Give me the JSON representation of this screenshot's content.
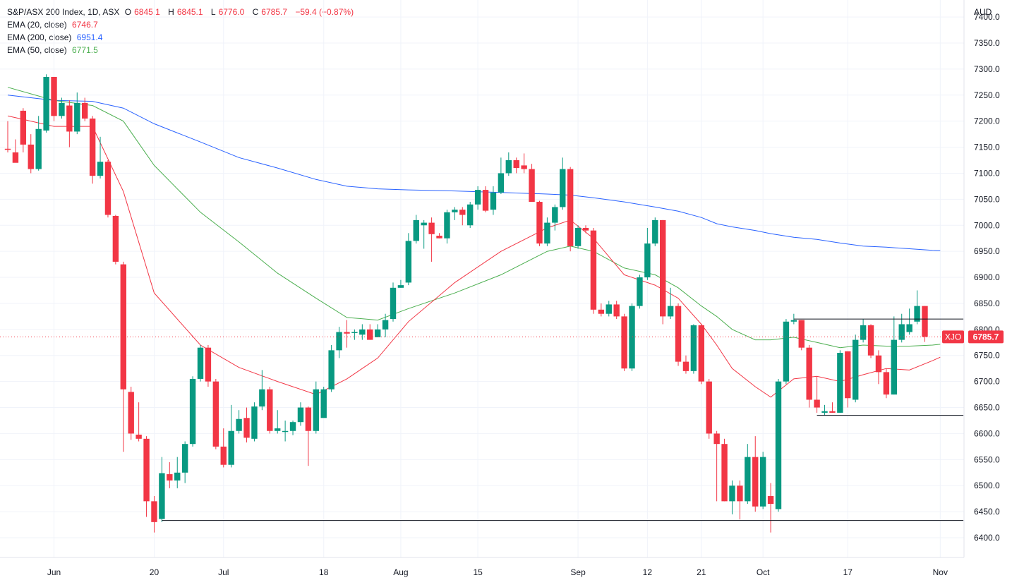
{
  "header": {
    "symbol": "S&P/ASX 200 Index, 1D, ASX",
    "o_label": "O",
    "o": "6845.1",
    "h_label": "H",
    "h": "6845.1",
    "l_label": "L",
    "l": "6776.0",
    "c_label": "C",
    "c": "6785.7",
    "change": "−59.4 (−0.87%)"
  },
  "indicators": [
    {
      "label": "EMA (20, close)",
      "value": "6746.7",
      "color": "#f23645"
    },
    {
      "label": "EMA (200, close)",
      "value": "6951.4",
      "color": "#2962ff"
    },
    {
      "label": "EMA (50, close)",
      "value": "6771.5",
      "color": "#4caf50"
    }
  ],
  "colors": {
    "up": "#089981",
    "down": "#f23645",
    "ema20": "#f23645",
    "ema50": "#4caf50",
    "ema200": "#2962ff",
    "grid": "#f0f3fa"
  },
  "price_axis": {
    "currency": "AUD",
    "ticks": [
      "6400.0",
      "6450.0",
      "6500.0",
      "6550.0",
      "6600.0",
      "6650.0",
      "6700.0",
      "6750.0",
      "6800.0",
      "6850.0",
      "6900.0",
      "6950.0",
      "7000.0",
      "7050.0",
      "7100.0",
      "7150.0",
      "7200.0",
      "7250.0",
      "7300.0",
      "7350.0",
      "7400.0"
    ]
  },
  "time_axis": {
    "labels": [
      {
        "text": "Jun",
        "bar": 6
      },
      {
        "text": "20",
        "bar": 19
      },
      {
        "text": "Jul",
        "bar": 28
      },
      {
        "text": "18",
        "bar": 41
      },
      {
        "text": "Aug",
        "bar": 51
      },
      {
        "text": "15",
        "bar": 61
      },
      {
        "text": "Sep",
        "bar": 74
      },
      {
        "text": "12",
        "bar": 83
      },
      {
        "text": "21",
        "bar": 90
      },
      {
        "text": "Oct",
        "bar": 98
      },
      {
        "text": "17",
        "bar": 109
      },
      {
        "text": "Nov",
        "bar": 121
      }
    ]
  },
  "price_tag": {
    "symbol": "XJO",
    "value": "6785.7"
  },
  "chart_data": {
    "type": "candlestick",
    "title": "S&P/ASX 200 Index, 1D, ASX",
    "y_unit": "AUD",
    "ylim": [
      6380,
      7420
    ],
    "grid": true,
    "candles": [
      {
        "o": 7147,
        "h": 7200,
        "l": 7140,
        "c": 7145
      },
      {
        "o": 7140,
        "h": 7165,
        "l": 7130,
        "c": 7120
      },
      {
        "o": 7220,
        "h": 7225,
        "l": 7140,
        "c": 7155
      },
      {
        "o": 7155,
        "h": 7175,
        "l": 7100,
        "c": 7108
      },
      {
        "o": 7108,
        "h": 7210,
        "l": 7105,
        "c": 7185
      },
      {
        "o": 7182,
        "h": 7290,
        "l": 7178,
        "c": 7285
      },
      {
        "o": 7285,
        "h": 7285,
        "l": 7200,
        "c": 7210
      },
      {
        "o": 7210,
        "h": 7245,
        "l": 7205,
        "c": 7235
      },
      {
        "o": 7230,
        "h": 7240,
        "l": 7150,
        "c": 7180
      },
      {
        "o": 7180,
        "h": 7255,
        "l": 7175,
        "c": 7235
      },
      {
        "o": 7235,
        "h": 7245,
        "l": 7200,
        "c": 7205
      },
      {
        "o": 7205,
        "h": 7210,
        "l": 7080,
        "c": 7095
      },
      {
        "o": 7095,
        "h": 7170,
        "l": 7090,
        "c": 7122
      },
      {
        "o": 7122,
        "h": 7125,
        "l": 7015,
        "c": 7020
      },
      {
        "o": 7018,
        "h": 7020,
        "l": 6925,
        "c": 6930
      },
      {
        "o": 6925,
        "h": 6930,
        "l": 6565,
        "c": 6685
      },
      {
        "o": 6680,
        "h": 6690,
        "l": 6588,
        "c": 6600
      },
      {
        "o": 6598,
        "h": 6660,
        "l": 6585,
        "c": 6590
      },
      {
        "o": 6590,
        "h": 6595,
        "l": 6440,
        "c": 6470
      },
      {
        "o": 6470,
        "h": 6480,
        "l": 6410,
        "c": 6430
      },
      {
        "o": 6436,
        "h": 6555,
        "l": 6430,
        "c": 6524
      },
      {
        "o": 6522,
        "h": 6545,
        "l": 6495,
        "c": 6510
      },
      {
        "o": 6510,
        "h": 6555,
        "l": 6495,
        "c": 6525
      },
      {
        "o": 6525,
        "h": 6585,
        "l": 6505,
        "c": 6580
      },
      {
        "o": 6580,
        "h": 6710,
        "l": 6575,
        "c": 6705
      },
      {
        "o": 6705,
        "h": 6770,
        "l": 6700,
        "c": 6765
      },
      {
        "o": 6765,
        "h": 6770,
        "l": 6690,
        "c": 6700
      },
      {
        "o": 6700,
        "h": 6705,
        "l": 6570,
        "c": 6575
      },
      {
        "o": 6575,
        "h": 6610,
        "l": 6535,
        "c": 6540
      },
      {
        "o": 6540,
        "h": 6655,
        "l": 6535,
        "c": 6605
      },
      {
        "o": 6605,
        "h": 6645,
        "l": 6600,
        "c": 6628
      },
      {
        "o": 6630,
        "h": 6650,
        "l": 6583,
        "c": 6592
      },
      {
        "o": 6590,
        "h": 6660,
        "l": 6585,
        "c": 6652
      },
      {
        "o": 6652,
        "h": 6722,
        "l": 6645,
        "c": 6685
      },
      {
        "o": 6685,
        "h": 6690,
        "l": 6600,
        "c": 6605
      },
      {
        "o": 6605,
        "h": 6645,
        "l": 6600,
        "c": 6610
      },
      {
        "o": 6605,
        "h": 6625,
        "l": 6585,
        "c": 6605
      },
      {
        "o": 6605,
        "h": 6625,
        "l": 6597,
        "c": 6622
      },
      {
        "o": 6622,
        "h": 6660,
        "l": 6615,
        "c": 6650
      },
      {
        "o": 6650,
        "h": 6652,
        "l": 6538,
        "c": 6605
      },
      {
        "o": 6605,
        "h": 6700,
        "l": 6600,
        "c": 6685
      },
      {
        "o": 6630,
        "h": 6690,
        "l": 6640,
        "c": 6685
      },
      {
        "o": 6685,
        "h": 6770,
        "l": 6680,
        "c": 6760
      },
      {
        "o": 6760,
        "h": 6805,
        "l": 6745,
        "c": 6795
      },
      {
        "o": 6795,
        "h": 6818,
        "l": 6765,
        "c": 6792
      },
      {
        "o": 6793,
        "h": 6800,
        "l": 6780,
        "c": 6795
      },
      {
        "o": 6790,
        "h": 6810,
        "l": 6780,
        "c": 6800
      },
      {
        "o": 6800,
        "h": 6810,
        "l": 6780,
        "c": 6780
      },
      {
        "o": 6785,
        "h": 6810,
        "l": 6785,
        "c": 6800
      },
      {
        "o": 6800,
        "h": 6830,
        "l": 6785,
        "c": 6818
      },
      {
        "o": 6820,
        "h": 6890,
        "l": 6815,
        "c": 6880
      },
      {
        "o": 6880,
        "h": 6895,
        "l": 6880,
        "c": 6885
      },
      {
        "o": 6890,
        "h": 6985,
        "l": 6885,
        "c": 6970
      },
      {
        "o": 6970,
        "h": 7020,
        "l": 6965,
        "c": 7010
      },
      {
        "o": 7000,
        "h": 7010,
        "l": 6955,
        "c": 7005
      },
      {
        "o": 7005,
        "h": 7015,
        "l": 6930,
        "c": 6983
      },
      {
        "o": 6980,
        "h": 6985,
        "l": 6975,
        "c": 6975
      },
      {
        "o": 6975,
        "h": 7030,
        "l": 6965,
        "c": 7025
      },
      {
        "o": 7025,
        "h": 7035,
        "l": 7010,
        "c": 7030
      },
      {
        "o": 7030,
        "h": 7035,
        "l": 7000,
        "c": 7020
      },
      {
        "o": 7000,
        "h": 7045,
        "l": 6995,
        "c": 7040
      },
      {
        "o": 7040,
        "h": 7075,
        "l": 7030,
        "c": 7068
      },
      {
        "o": 7068,
        "h": 7075,
        "l": 7025,
        "c": 7028
      },
      {
        "o": 7030,
        "h": 7075,
        "l": 7020,
        "c": 7063
      },
      {
        "o": 7063,
        "h": 7130,
        "l": 7060,
        "c": 7100
      },
      {
        "o": 7100,
        "h": 7140,
        "l": 7095,
        "c": 7125
      },
      {
        "o": 7125,
        "h": 7130,
        "l": 7100,
        "c": 7110
      },
      {
        "o": 7115,
        "h": 7138,
        "l": 7100,
        "c": 7108
      },
      {
        "o": 7108,
        "h": 7118,
        "l": 7050,
        "c": 7045
      },
      {
        "o": 7045,
        "h": 7047,
        "l": 6960,
        "c": 6965
      },
      {
        "o": 6965,
        "h": 7015,
        "l": 6960,
        "c": 7005
      },
      {
        "o": 7005,
        "h": 7040,
        "l": 6990,
        "c": 7035
      },
      {
        "o": 7035,
        "h": 7130,
        "l": 7030,
        "c": 7108
      },
      {
        "o": 7108,
        "h": 7112,
        "l": 6950,
        "c": 6960
      },
      {
        "o": 6960,
        "h": 7000,
        "l": 6955,
        "c": 6995
      },
      {
        "o": 6995,
        "h": 7000,
        "l": 6985,
        "c": 6990
      },
      {
        "o": 6990,
        "h": 6995,
        "l": 6830,
        "c": 6838
      },
      {
        "o": 6838,
        "h": 6850,
        "l": 6825,
        "c": 6830
      },
      {
        "o": 6830,
        "h": 6855,
        "l": 6825,
        "c": 6848
      },
      {
        "o": 6848,
        "h": 6855,
        "l": 6820,
        "c": 6825
      },
      {
        "o": 6825,
        "h": 6830,
        "l": 6720,
        "c": 6725
      },
      {
        "o": 6725,
        "h": 6850,
        "l": 6720,
        "c": 6845
      },
      {
        "o": 6845,
        "h": 6905,
        "l": 6840,
        "c": 6900
      },
      {
        "o": 6900,
        "h": 6995,
        "l": 6895,
        "c": 6965
      },
      {
        "o": 6965,
        "h": 7015,
        "l": 6960,
        "c": 7010
      },
      {
        "o": 7010,
        "h": 7010,
        "l": 6810,
        "c": 6825
      },
      {
        "o": 6825,
        "h": 6880,
        "l": 6820,
        "c": 6845
      },
      {
        "o": 6845,
        "h": 6850,
        "l": 6730,
        "c": 6738
      },
      {
        "o": 6738,
        "h": 6750,
        "l": 6715,
        "c": 6720
      },
      {
        "o": 6720,
        "h": 6810,
        "l": 6715,
        "c": 6808
      },
      {
        "o": 6808,
        "h": 6810,
        "l": 6695,
        "c": 6700
      },
      {
        "o": 6700,
        "h": 6705,
        "l": 6590,
        "c": 6600
      },
      {
        "o": 6600,
        "h": 6605,
        "l": 6470,
        "c": 6580
      },
      {
        "o": 6580,
        "h": 6590,
        "l": 6470,
        "c": 6470
      },
      {
        "o": 6470,
        "h": 6510,
        "l": 6445,
        "c": 6500
      },
      {
        "o": 6500,
        "h": 6510,
        "l": 6435,
        "c": 6470
      },
      {
        "o": 6470,
        "h": 6580,
        "l": 6465,
        "c": 6555
      },
      {
        "o": 6555,
        "h": 6595,
        "l": 6450,
        "c": 6460
      },
      {
        "o": 6460,
        "h": 6565,
        "l": 6455,
        "c": 6555
      },
      {
        "o": 6480,
        "h": 6505,
        "l": 6410,
        "c": 6465
      },
      {
        "o": 6455,
        "h": 6705,
        "l": 6450,
        "c": 6700
      },
      {
        "o": 6700,
        "h": 6820,
        "l": 6695,
        "c": 6815
      },
      {
        "o": 6815,
        "h": 6830,
        "l": 6810,
        "c": 6818
      },
      {
        "o": 6818,
        "h": 6818,
        "l": 6760,
        "c": 6765
      },
      {
        "o": 6765,
        "h": 6770,
        "l": 6650,
        "c": 6665
      },
      {
        "o": 6665,
        "h": 6710,
        "l": 6640,
        "c": 6650
      },
      {
        "o": 6640,
        "h": 6655,
        "l": 6635,
        "c": 6643
      },
      {
        "o": 6643,
        "h": 6660,
        "l": 6640,
        "c": 6640
      },
      {
        "o": 6640,
        "h": 6760,
        "l": 6640,
        "c": 6755
      },
      {
        "o": 6758,
        "h": 6758,
        "l": 6650,
        "c": 6668
      },
      {
        "o": 6665,
        "h": 6790,
        "l": 6660,
        "c": 6780
      },
      {
        "o": 6780,
        "h": 6820,
        "l": 6775,
        "c": 6808
      },
      {
        "o": 6808,
        "h": 6810,
        "l": 6745,
        "c": 6750
      },
      {
        "o": 6750,
        "h": 6760,
        "l": 6695,
        "c": 6718
      },
      {
        "o": 6718,
        "h": 6725,
        "l": 6668,
        "c": 6675
      },
      {
        "o": 6675,
        "h": 6825,
        "l": 6675,
        "c": 6780
      },
      {
        "o": 6780,
        "h": 6830,
        "l": 6775,
        "c": 6810
      },
      {
        "o": 6795,
        "h": 6840,
        "l": 6790,
        "c": 6810
      },
      {
        "o": 6815,
        "h": 6875,
        "l": 6810,
        "c": 6845
      },
      {
        "o": 6845,
        "h": 6845,
        "l": 6776,
        "c": 6785.7
      }
    ],
    "ema20": [
      [
        0,
        7210
      ],
      [
        6,
        7190
      ],
      [
        11,
        7190
      ],
      [
        15,
        7065
      ],
      [
        19,
        6870
      ],
      [
        25,
        6770
      ],
      [
        30,
        6727
      ],
      [
        35,
        6700
      ],
      [
        40,
        6675
      ],
      [
        44,
        6705
      ],
      [
        48,
        6745
      ],
      [
        52,
        6815
      ],
      [
        58,
        6890
      ],
      [
        64,
        6950
      ],
      [
        70,
        6995
      ],
      [
        73,
        7010
      ],
      [
        76,
        6975
      ],
      [
        80,
        6905
      ],
      [
        84,
        6885
      ],
      [
        87,
        6860
      ],
      [
        90,
        6810
      ],
      [
        92,
        6770
      ],
      [
        94,
        6725
      ],
      [
        97,
        6690
      ],
      [
        99,
        6670
      ],
      [
        102,
        6705
      ],
      [
        105,
        6710
      ],
      [
        108,
        6700
      ],
      [
        111,
        6713
      ],
      [
        114,
        6725
      ],
      [
        117,
        6722
      ],
      [
        120,
        6740
      ],
      [
        121,
        6746.7
      ]
    ],
    "ema50": [
      [
        0,
        7265
      ],
      [
        6,
        7240
      ],
      [
        11,
        7230
      ],
      [
        15,
        7200
      ],
      [
        19,
        7115
      ],
      [
        25,
        7025
      ],
      [
        30,
        6968
      ],
      [
        35,
        6908
      ],
      [
        40,
        6860
      ],
      [
        44,
        6823
      ],
      [
        48,
        6818
      ],
      [
        52,
        6840
      ],
      [
        58,
        6870
      ],
      [
        64,
        6905
      ],
      [
        70,
        6950
      ],
      [
        73,
        6960
      ],
      [
        76,
        6950
      ],
      [
        80,
        6918
      ],
      [
        84,
        6905
      ],
      [
        87,
        6880
      ],
      [
        90,
        6845
      ],
      [
        92,
        6825
      ],
      [
        94,
        6800
      ],
      [
        97,
        6780
      ],
      [
        99,
        6780
      ],
      [
        102,
        6785
      ],
      [
        105,
        6775
      ],
      [
        108,
        6765
      ],
      [
        111,
        6770
      ],
      [
        114,
        6768
      ],
      [
        117,
        6768
      ],
      [
        120,
        6770
      ],
      [
        121,
        6771.5
      ]
    ],
    "ema200": [
      [
        0,
        7250
      ],
      [
        6,
        7240
      ],
      [
        11,
        7238
      ],
      [
        15,
        7225
      ],
      [
        19,
        7195
      ],
      [
        25,
        7160
      ],
      [
        30,
        7130
      ],
      [
        35,
        7110
      ],
      [
        40,
        7088
      ],
      [
        44,
        7075
      ],
      [
        48,
        7070
      ],
      [
        52,
        7068
      ],
      [
        58,
        7066
      ],
      [
        64,
        7063
      ],
      [
        70,
        7060
      ],
      [
        73,
        7058
      ],
      [
        76,
        7053
      ],
      [
        80,
        7045
      ],
      [
        84,
        7035
      ],
      [
        87,
        7027
      ],
      [
        90,
        7015
      ],
      [
        92,
        7003
      ],
      [
        94,
        6997
      ],
      [
        97,
        6990
      ],
      [
        99,
        6984
      ],
      [
        102,
        6977
      ],
      [
        105,
        6973
      ],
      [
        108,
        6966
      ],
      [
        111,
        6960
      ],
      [
        114,
        6958
      ],
      [
        117,
        6955
      ],
      [
        120,
        6952
      ],
      [
        121,
        6951.4
      ]
    ],
    "annotations": [
      {
        "type": "hline",
        "price": 6433,
        "from_bar": 20,
        "to_bar": 124
      },
      {
        "type": "hline",
        "price": 6820,
        "from_bar": 102,
        "to_bar": 124
      },
      {
        "type": "hline",
        "price": 6635,
        "from_bar": 105,
        "to_bar": 124
      }
    ],
    "last_price_line": 6785.7
  }
}
